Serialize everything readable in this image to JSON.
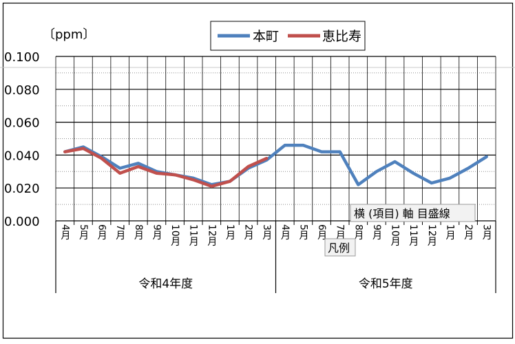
{
  "chart_data": {
    "type": "line",
    "y_unit_label": "〔ppm〕",
    "ylim": [
      0,
      0.1
    ],
    "yticks": [
      "0.100",
      "0.080",
      "0.060",
      "0.040",
      "0.020",
      "0.000"
    ],
    "x_months": [
      "4月",
      "5月",
      "6月",
      "7月",
      "8月",
      "9月",
      "10月",
      "11月",
      "12月",
      "1月",
      "2月",
      "3月",
      "4月",
      "5月",
      "6月",
      "7月",
      "8月",
      "9月",
      "10月",
      "11月",
      "12月",
      "1月",
      "2月",
      "3月"
    ],
    "x_groups": [
      "令和4年度",
      "令和5年度"
    ],
    "grid": true,
    "legend_position": "top-center",
    "series": [
      {
        "name": "本町",
        "color": "#4F81BD",
        "values": [
          0.042,
          0.045,
          0.039,
          0.032,
          0.035,
          0.03,
          0.028,
          0.026,
          0.022,
          0.024,
          0.032,
          0.037,
          0.046,
          0.046,
          0.042,
          0.042,
          0.022,
          0.03,
          0.036,
          0.029,
          0.023,
          0.026,
          0.032,
          0.039
        ]
      },
      {
        "name": "恵比寿",
        "color": "#C0504D",
        "values": [
          0.042,
          0.044,
          0.038,
          0.029,
          0.033,
          0.029,
          0.028,
          0.025,
          0.021,
          0.024,
          0.033,
          0.038,
          null,
          null,
          null,
          null,
          null,
          null,
          null,
          null,
          null,
          null,
          null,
          null
        ]
      }
    ]
  },
  "overlays": {
    "tooltip_axis": "横 (項目) 軸 目盛線",
    "tooltip_legend": "凡例"
  }
}
